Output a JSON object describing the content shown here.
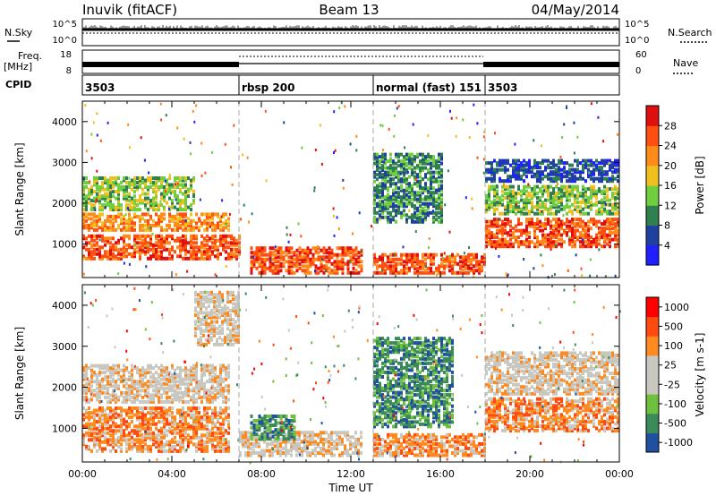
{
  "header": {
    "station": "Inuvik (fitACF)",
    "beam": "Beam 13",
    "date": "04/May/2014"
  },
  "strip_labels": {
    "nsky": "N.Sky",
    "nsky_top": "10^5",
    "nsky_bottom": "10^0",
    "nsearch": "N.Search",
    "nsearch_top": "10^5",
    "nsearch_bottom": "10^0",
    "freq": "Freq.",
    "freq_unit": "[MHz]",
    "freq_top": "18",
    "freq_bottom": "8",
    "nave": "Nave",
    "nave_top": "60",
    "nave_bottom": "0",
    "cpid": "CPID"
  },
  "cpid_segments": [
    {
      "start_hour": 0,
      "label": "3503"
    },
    {
      "start_hour": 7,
      "label": "rbsp 200"
    },
    {
      "start_hour": 13,
      "label": "normal (fast) 151"
    },
    {
      "start_hour": 18,
      "label": "3503"
    }
  ],
  "colors": {
    "power": [
      "#2020ff",
      "#2040a0",
      "#2f7f4f",
      "#6fcf3f",
      "#f0c020",
      "#ff8c1a",
      "#ff5010",
      "#e01010"
    ],
    "velocity": [
      "#ff0000",
      "#ff4a10",
      "#ff8a20",
      "#c8c8c0",
      "#c8c8c0",
      "#70c040",
      "#3a8a5a",
      "#2050a0"
    ]
  },
  "chart_data": [
    {
      "type": "heatmap",
      "name": "power",
      "ylabel": "Slant Range [km]",
      "x_range_hours": [
        0,
        24
      ],
      "ylim_km": [
        180,
        4500
      ],
      "yticks": [
        "1000",
        "2000",
        "3000",
        "4000"
      ],
      "colorbar_label": "Power [dB]",
      "colorbar_ticks": [
        "4",
        "8",
        "12",
        "16",
        "20",
        "24",
        "28"
      ],
      "bands": [
        {
          "t0": 0,
          "t1": 7,
          "r0": 600,
          "r1": 1200,
          "level": 6
        },
        {
          "t0": 0,
          "t1": 6.5,
          "r0": 1300,
          "r1": 1700,
          "level": 5
        },
        {
          "t0": 0,
          "t1": 5,
          "r0": 1800,
          "r1": 2600,
          "level": 3
        },
        {
          "t0": 7.5,
          "t1": 12.5,
          "r0": 250,
          "r1": 900,
          "level": 6
        },
        {
          "t0": 13,
          "t1": 18,
          "r0": 250,
          "r1": 700,
          "level": 6
        },
        {
          "t0": 13,
          "t1": 16,
          "r0": 1500,
          "r1": 3200,
          "level": 2
        },
        {
          "t0": 18,
          "t1": 24,
          "r0": 900,
          "r1": 1600,
          "level": 6
        },
        {
          "t0": 18,
          "t1": 24,
          "r0": 1700,
          "r1": 2400,
          "level": 3
        },
        {
          "t0": 18,
          "t1": 24,
          "r0": 2500,
          "r1": 3000,
          "level": 1
        }
      ]
    },
    {
      "type": "heatmap",
      "name": "velocity",
      "ylabel": "Slant Range [km]",
      "xlabel": "Time UT",
      "x_range_hours": [
        0,
        24
      ],
      "ylim_km": [
        180,
        4500
      ],
      "yticks": [
        "1000",
        "2000",
        "3000",
        "4000"
      ],
      "xticks": [
        "00:00",
        "04:00",
        "08:00",
        "12:00",
        "16:00",
        "20:00",
        "00:00"
      ],
      "colorbar_label": "Velocity [m s-1]",
      "colorbar_ticks": [
        "1000",
        "500",
        "100",
        "25",
        "-25",
        "-100",
        "-500",
        "-1000"
      ],
      "bands": [
        {
          "t0": 0,
          "t1": 6.5,
          "r0": 400,
          "r1": 1500,
          "level": 2
        },
        {
          "t0": 0,
          "t1": 6.5,
          "r0": 1600,
          "r1": 2500,
          "level": 3
        },
        {
          "t0": 5,
          "t1": 7,
          "r0": 3000,
          "r1": 4300,
          "level": 3
        },
        {
          "t0": 7,
          "t1": 12.5,
          "r0": 300,
          "r1": 900,
          "level": 3
        },
        {
          "t0": 7.5,
          "t1": 9.5,
          "r0": 700,
          "r1": 1300,
          "level": 6
        },
        {
          "t0": 13,
          "t1": 18,
          "r0": 300,
          "r1": 800,
          "level": 2
        },
        {
          "t0": 13,
          "t1": 16.5,
          "r0": 1000,
          "r1": 3200,
          "level": 6
        },
        {
          "t0": 18,
          "t1": 24,
          "r0": 900,
          "r1": 1700,
          "level": 2
        },
        {
          "t0": 18,
          "t1": 24,
          "r0": 1800,
          "r1": 2800,
          "level": 3
        }
      ]
    }
  ]
}
